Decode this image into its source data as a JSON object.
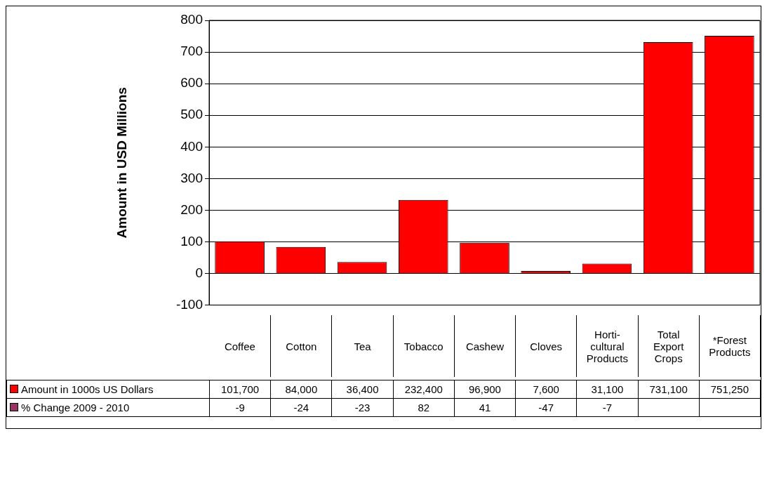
{
  "chart_data": {
    "type": "bar",
    "ylabel": "Amount in USD Millions",
    "categories": [
      "Coffee",
      "Cotton",
      "Tea",
      "Tobacco",
      "Cashew",
      "Cloves",
      "Horti-cultural Products",
      "Total Export Crops",
      "*Forest Products"
    ],
    "series": [
      {
        "name": "Amount in 1000s US Dollars",
        "color": "#ff0000",
        "values": [
          101.7,
          84,
          36.4,
          232.4,
          96.9,
          7.6,
          31.1,
          731.1,
          751.25
        ]
      },
      {
        "name": "% Change 2009 - 2010",
        "color": "#993366",
        "values": [
          null,
          null,
          null,
          null,
          null,
          null,
          null,
          null,
          null
        ],
        "value_labels": [
          "-9",
          "-24",
          "-23",
          "82",
          "41",
          "-47",
          "-7",
          null,
          null
        ]
      }
    ],
    "annotations": [
      "101,700",
      "84,000",
      "36,400",
      "232,400",
      "96,900",
      "7,600",
      "31,100",
      "731,100",
      "751,250"
    ],
    "ylim": [
      -100,
      800
    ],
    "yticks": [
      -100,
      0,
      100,
      200,
      300,
      400,
      500,
      600,
      700,
      800
    ],
    "grid": "y",
    "legend": "bottom"
  }
}
